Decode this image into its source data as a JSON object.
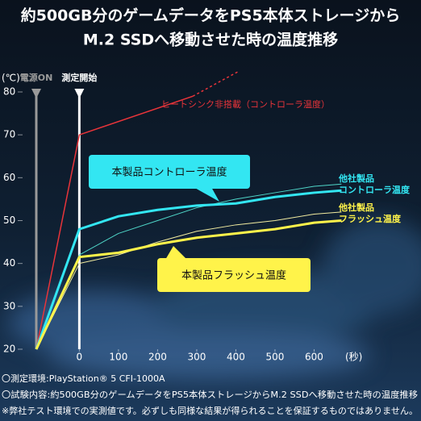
{
  "chart_data": {
    "type": "line",
    "title": [
      "約500GB分のゲームデータをPS5本体ストレージから",
      "M.2 SSDへ移動させた時の温度推移"
    ],
    "y_label": "(℃)",
    "x_label": "(秒)",
    "xlim": [
      -110,
      700
    ],
    "ylim": [
      20,
      80
    ],
    "xticks": [
      0,
      100,
      200,
      300,
      400,
      500,
      600
    ],
    "yticks": [
      20,
      30,
      40,
      50,
      60,
      70,
      80
    ],
    "markers": [
      {
        "label": "電源ON",
        "x": -110,
        "color": "#9a9a9a"
      },
      {
        "label": "測定開始",
        "x": 0,
        "color": "#ffffff"
      }
    ],
    "series": [
      {
        "name": "ヒートシンク非搭載（コントローラ温度）",
        "color": "#e8343a",
        "line_width": 1.5,
        "style": "solid",
        "x": [
          -110,
          0,
          290
        ],
        "values": [
          20,
          70,
          79
        ]
      },
      {
        "color": "#e8343a",
        "line_width": 1.5,
        "style": "dotted",
        "x": [
          290,
          405
        ],
        "values": [
          79,
          84.7
        ]
      },
      {
        "name": [
          "他社製品",
          "コントローラ温度"
        ],
        "color": "#4fd6c8",
        "line_width": 1,
        "style": "solid",
        "x": [
          -110,
          0,
          100,
          200,
          300,
          400,
          500,
          600,
          670
        ],
        "values": [
          20,
          42,
          47,
          50,
          53,
          55,
          56.5,
          58,
          58.5
        ]
      },
      {
        "name": [
          "他社製品",
          "フラッシュ温度"
        ],
        "color": "#f2eca0",
        "line_width": 1,
        "style": "solid",
        "x": [
          -110,
          0,
          100,
          200,
          300,
          400,
          500,
          600,
          670
        ],
        "values": [
          20,
          40,
          42,
          45,
          47.5,
          49,
          50,
          51.5,
          52
        ]
      },
      {
        "name": "本製品コントローラ温度",
        "color": "#33e6f2",
        "line_width": 3,
        "style": "solid",
        "x": [
          -110,
          0,
          100,
          200,
          300,
          400,
          500,
          600,
          670
        ],
        "values": [
          20,
          48,
          51,
          52.5,
          53.5,
          54,
          55.5,
          56.5,
          57
        ]
      },
      {
        "name": "本製品フラッシュ温度",
        "color": "#fff34a",
        "line_width": 3,
        "style": "solid",
        "x": [
          -110,
          0,
          100,
          200,
          300,
          400,
          500,
          600,
          670
        ],
        "values": [
          20,
          41.5,
          42.5,
          44.5,
          46,
          47,
          48,
          49.5,
          50
        ]
      }
    ],
    "notes": [
      "〇測定環境:PlayStation® 5 CFI-1000A",
      "〇試験内容:約500GB分のゲームデータをPS5本体ストレージからM.2 SSDへ移動させた時の温度推移",
      "※弊社テスト環境での実測値です。必ずしも同様な結果が得られることを保証するものではありません。"
    ]
  }
}
